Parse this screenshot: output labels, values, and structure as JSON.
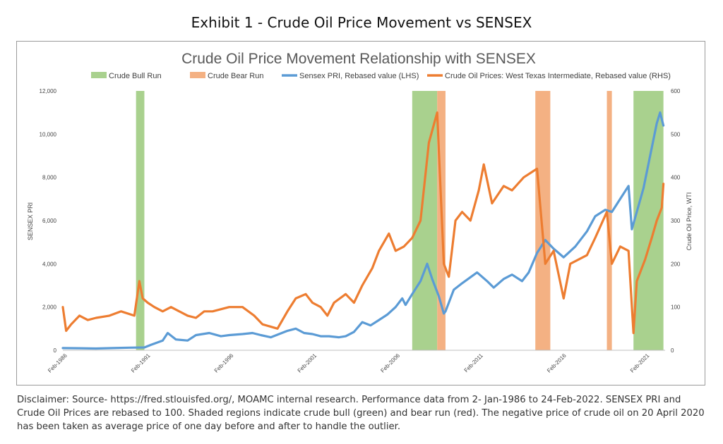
{
  "exhibit_title": "Exhibit 1 - Crude Oil Price Movement vs SENSEX",
  "disclaimer": "Disclaimer: Source- https://fred.stlouisfed.org/, MOAMC internal research. Performance data from 2- Jan-1986 to 24-Feb-2022. SENSEX PRI and Crude Oil Prices are rebased to 100. Shaded regions indicate crude bull (green) and bear run (red). The negative price of crude oil on 20 April 2020 has been taken as average price of one day before and after to handle the outlier.",
  "colors": {
    "bull": "#a9d18e",
    "bear": "#f4b183",
    "sensex": "#5b9bd5",
    "crude": "#ed7d31"
  },
  "chart_data": {
    "type": "line",
    "title": "Crude Oil Price Movement Relationship with SENSEX",
    "ylabel": "SENSEX PRI",
    "y2label": "Crude Oil Price, WTI",
    "ylim": [
      0,
      12000
    ],
    "y2lim": [
      0,
      600
    ],
    "xlim": [
      1986.0,
      2022.2
    ],
    "yticks": [
      "0",
      "2,000",
      "4,000",
      "6,000",
      "8,000",
      "10,000",
      "12,000"
    ],
    "y2ticks": [
      "0",
      "100",
      "200",
      "300",
      "400",
      "500",
      "600"
    ],
    "xticks": [
      {
        "label": "Feb-1986",
        "x": 1986.1
      },
      {
        "label": "Feb-1991",
        "x": 1991.1
      },
      {
        "label": "Feb-1996",
        "x": 1996.1
      },
      {
        "label": "Feb-2001",
        "x": 2001.1
      },
      {
        "label": "Feb-2006",
        "x": 2006.1
      },
      {
        "label": "Feb-2011",
        "x": 2011.1
      },
      {
        "label": "Feb-2016",
        "x": 2016.1
      },
      {
        "label": "Feb-2021",
        "x": 2021.1
      }
    ],
    "legend_position": "top",
    "legend": [
      {
        "label": "Crude Bull Run",
        "kind": "bull"
      },
      {
        "label": "Crude Bear Run",
        "kind": "bear"
      },
      {
        "label": "Sensex PRI, Rebased value (LHS)",
        "kind": "sensex"
      },
      {
        "label": "Crude Oil Prices: West Texas Intermediate, Rebased value (RHS)",
        "kind": "crude"
      }
    ],
    "regions": [
      {
        "kind": "bull",
        "start": 1990.4,
        "end": 1990.9
      },
      {
        "kind": "bull",
        "start": 2007.0,
        "end": 2008.5
      },
      {
        "kind": "bear",
        "start": 2008.5,
        "end": 2009.0
      },
      {
        "kind": "bear",
        "start": 2014.4,
        "end": 2015.3
      },
      {
        "kind": "bear",
        "start": 2018.7,
        "end": 2019.0
      },
      {
        "kind": "bull",
        "start": 2020.3,
        "end": 2022.1
      }
    ],
    "series": [
      {
        "name": "Sensex PRI, Rebased value (LHS)",
        "axis": "left",
        "kind": "sensex",
        "x": [
          1986.0,
          1987.0,
          1988.0,
          1989.0,
          1990.0,
          1990.9,
          1991.3,
          1992.0,
          1992.3,
          1992.8,
          1993.5,
          1994.0,
          1994.8,
          1995.5,
          1996.0,
          1996.8,
          1997.4,
          1997.9,
          1998.5,
          1999.0,
          1999.5,
          2000.0,
          2000.5,
          2001.0,
          2001.5,
          2002.0,
          2002.6,
          2003.0,
          2003.5,
          2004.0,
          2004.5,
          2005.0,
          2005.5,
          2006.0,
          2006.4,
          2006.6,
          2007.0,
          2007.5,
          2007.9,
          2008.2,
          2008.6,
          2008.9,
          2009.0,
          2009.5,
          2010.0,
          2010.9,
          2011.5,
          2011.9,
          2012.5,
          2013.0,
          2013.6,
          2014.0,
          2014.5,
          2015.0,
          2015.5,
          2016.1,
          2016.8,
          2017.5,
          2018.0,
          2018.6,
          2019.0,
          2019.5,
          2020.0,
          2020.2,
          2020.5,
          2020.9,
          2021.3,
          2021.7,
          2021.9,
          2022.1
        ],
        "y": [
          100,
          95,
          80,
          100,
          120,
          130,
          250,
          450,
          800,
          500,
          450,
          700,
          800,
          650,
          700,
          750,
          800,
          700,
          600,
          750,
          900,
          1000,
          800,
          750,
          650,
          650,
          600,
          650,
          850,
          1300,
          1150,
          1400,
          1650,
          2000,
          2400,
          2100,
          2600,
          3200,
          4000,
          3300,
          2500,
          1700,
          1800,
          2800,
          3100,
          3600,
          3200,
          2900,
          3300,
          3500,
          3200,
          3600,
          4500,
          5100,
          4700,
          4300,
          4800,
          5500,
          6200,
          6500,
          6400,
          7000,
          7600,
          5600,
          6400,
          7500,
          9000,
          10500,
          11000,
          10400
        ]
      },
      {
        "name": "Crude Oil Prices: West Texas Intermediate, Rebased value (RHS)",
        "axis": "right",
        "kind": "crude",
        "x": [
          1986.0,
          1986.2,
          1986.5,
          1987.0,
          1987.5,
          1988.0,
          1988.8,
          1989.5,
          1990.3,
          1990.6,
          1990.8,
          1991.1,
          1991.5,
          1992.0,
          1992.5,
          1993.0,
          1993.5,
          1994.0,
          1994.5,
          1995.0,
          1996.0,
          1996.8,
          1997.5,
          1998.0,
          1998.9,
          1999.5,
          2000.0,
          2000.6,
          2001.0,
          2001.5,
          2001.9,
          2002.3,
          2003.0,
          2003.5,
          2004.0,
          2004.6,
          2005.0,
          2005.6,
          2006.0,
          2006.5,
          2007.0,
          2007.5,
          2008.0,
          2008.5,
          2008.9,
          2009.2,
          2009.6,
          2010.0,
          2010.5,
          2011.0,
          2011.3,
          2011.8,
          2012.5,
          2013.0,
          2013.7,
          2014.5,
          2015.0,
          2015.5,
          2016.1,
          2016.5,
          2017.0,
          2017.5,
          2018.0,
          2018.7,
          2019.0,
          2019.5,
          2020.0,
          2020.3,
          2020.5,
          2021.0,
          2021.4,
          2021.7,
          2022.0,
          2022.1
        ],
        "y": [
          100,
          45,
          60,
          80,
          70,
          75,
          80,
          90,
          80,
          160,
          120,
          110,
          100,
          90,
          100,
          90,
          80,
          75,
          90,
          90,
          100,
          100,
          80,
          60,
          50,
          90,
          120,
          130,
          110,
          100,
          80,
          110,
          130,
          110,
          150,
          190,
          230,
          270,
          230,
          240,
          260,
          300,
          480,
          550,
          200,
          170,
          300,
          320,
          300,
          370,
          430,
          340,
          380,
          370,
          400,
          420,
          200,
          230,
          120,
          200,
          210,
          220,
          260,
          320,
          200,
          240,
          230,
          40,
          160,
          210,
          260,
          300,
          330,
          385
        ]
      }
    ]
  }
}
